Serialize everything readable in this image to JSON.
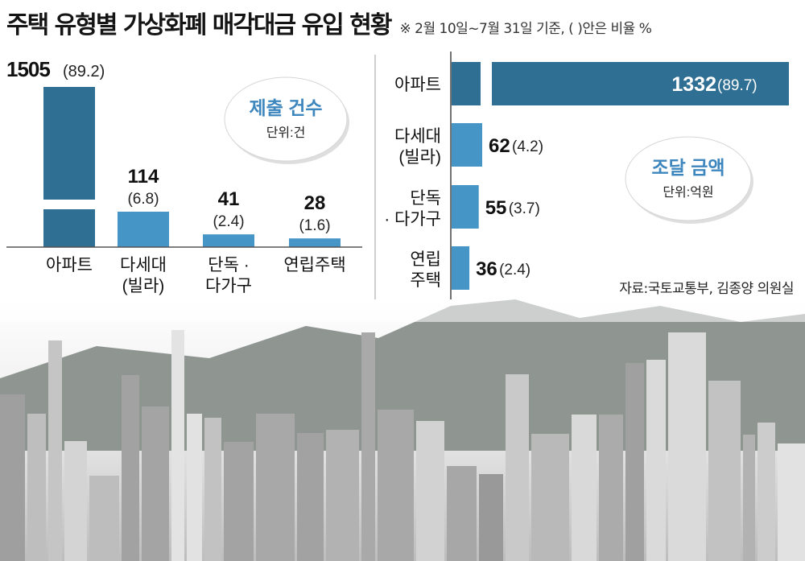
{
  "title": "주택 유형별 가상화폐 매각대금 유입 현황",
  "note": "※ 2월 10일~7월 31일 기준, (    )안은 비율 %",
  "source": "자료:국토교통부, 김종양 의원실",
  "colors": {
    "dark_bar": "#2f6f93",
    "light_bar": "#4596c7",
    "badge_title": "#3d86be",
    "sky": "#bfc3c6"
  },
  "chart_data": [
    {
      "type": "bar",
      "categories": [
        [
          "아파트"
        ],
        [
          "다세대",
          "(빌라)"
        ],
        [
          "단독 ·",
          "다가구"
        ],
        [
          "연립주택"
        ]
      ],
      "values": [
        1505,
        114,
        41,
        28
      ],
      "percents": [
        "89.2",
        "6.8",
        "2.4",
        "1.6"
      ],
      "value_labels": [
        "1505",
        "114",
        "41",
        "28"
      ],
      "percent_labels": [
        "(89.2)",
        "(6.8)",
        "(2.4)",
        "(1.6)"
      ],
      "axis_break": true,
      "badge": {
        "title": "제출 건수",
        "unit": "단위:건"
      }
    },
    {
      "type": "bar",
      "orientation": "horizontal",
      "categories": [
        [
          "아파트"
        ],
        [
          "다세대",
          "(빌라)"
        ],
        [
          "단독",
          "· 다가구"
        ],
        [
          "연립",
          "주택"
        ]
      ],
      "values": [
        1332,
        62,
        55,
        36
      ],
      "percents": [
        "89.7",
        "4.2",
        "3.7",
        "2.4"
      ],
      "value_labels": [
        "1332",
        "62",
        "55",
        "36"
      ],
      "percent_labels": [
        "(89.7)",
        "(4.2)",
        "(3.7)",
        "(2.4)"
      ],
      "axis_break": true,
      "badge": {
        "title": "조달 금액",
        "unit": "단위:억원"
      }
    }
  ]
}
